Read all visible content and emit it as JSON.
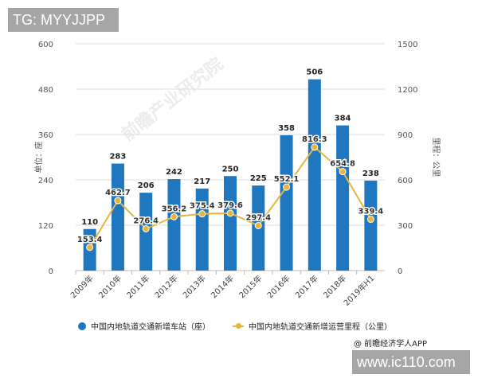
{
  "watermarks": {
    "top_left": "TG: MYYJJPP",
    "bottom_right": "www.ic110.com",
    "logo": "前瞻产业研究院"
  },
  "credit": "@ 前瞻经济学人APP",
  "chart_data": {
    "type": "bar+line",
    "categories": [
      "2009年",
      "2010年",
      "2011年",
      "2012年",
      "2013年",
      "2014年",
      "2015年",
      "2016年",
      "2017年",
      "2018年",
      "2019年H1"
    ],
    "series": [
      {
        "name": "中国内地轨道交通新增车站（座）",
        "type": "bar",
        "axis": "left",
        "color": "#1f77c0",
        "values": [
          110,
          283,
          206,
          242,
          217,
          250,
          225,
          358,
          506,
          384,
          238
        ]
      },
      {
        "name": "中国内地轨道交通新增运营里程（公里）",
        "type": "line",
        "axis": "right",
        "color": "#e8b53a",
        "values": [
          153.4,
          462.7,
          276.4,
          356.2,
          375.4,
          379.6,
          297.4,
          552.1,
          816.3,
          654.8,
          339.4
        ]
      }
    ],
    "ylabel": "单位：座",
    "y2label": "里程：公里",
    "ylim": [
      0,
      600
    ],
    "yticks": [
      0,
      120,
      240,
      360,
      480,
      600
    ],
    "y2lim": [
      0,
      1500
    ],
    "y2ticks": [
      0,
      300,
      600,
      900,
      1200,
      1500
    ],
    "grid": true,
    "legend": "bottom"
  }
}
